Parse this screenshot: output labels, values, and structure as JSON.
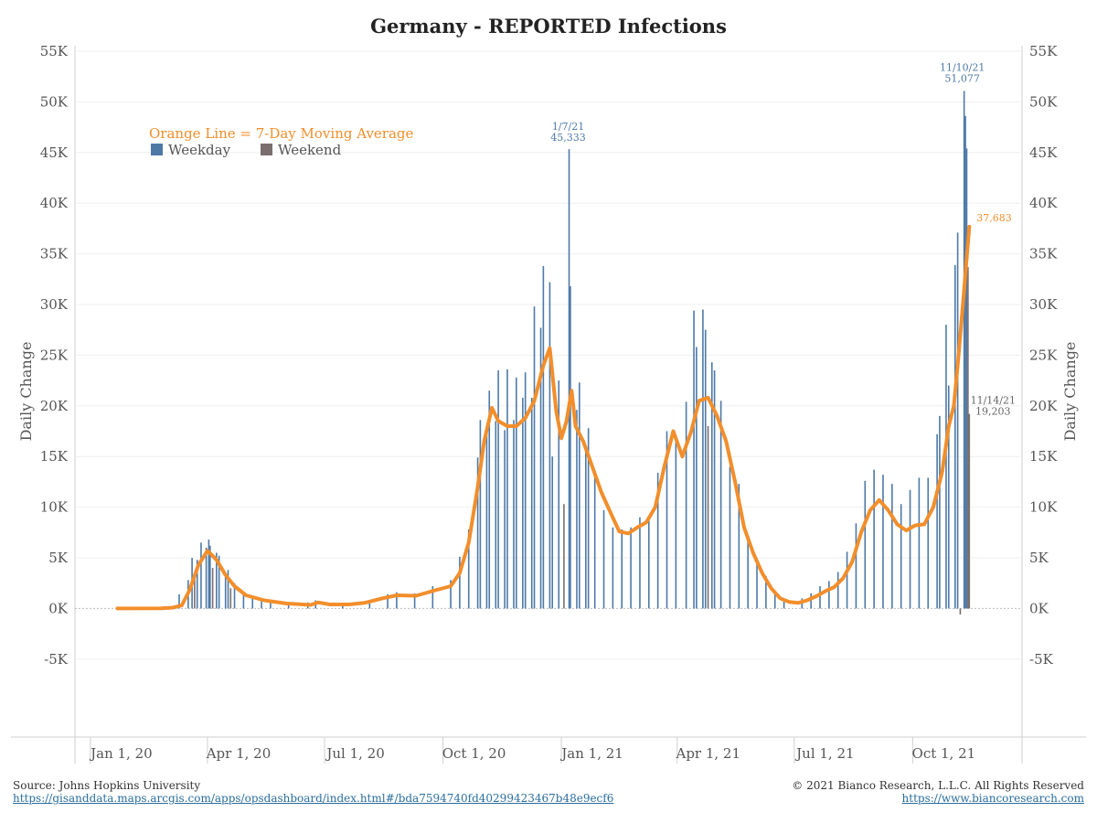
{
  "header": {
    "title": "Germany - REPORTED Infections"
  },
  "footer": {
    "source": "Source: Johns Hopkins University",
    "source_url": "https://gisanddata.maps.arcgis.com/apps/opsdashboard/index.html#/bda7594740fd40299423467b48e9ecf6",
    "copyright": "© 2021 Bianco Research, L.L.C. All Rights Reserved",
    "site_url": "https://www.biancoresearch.com"
  },
  "legend": {
    "line_note": "Orange Line = 7-Day Moving Average",
    "weekday": "Weekday",
    "weekend": "Weekend"
  },
  "colors": {
    "weekday": "#4e79a7",
    "weekend": "#7a6e6e",
    "moving_average": "#f28e2b",
    "label_blue": "#4e79a7",
    "label_gray": "#666666"
  },
  "chart_data": {
    "type": "bar",
    "title": "Germany - REPORTED Infections",
    "ylabel_left": "Daily Change",
    "ylabel_right": "Daily Change",
    "ylim": [
      -5000,
      55000
    ],
    "xlim": [
      "2019-12-20",
      "2021-12-25"
    ],
    "x_ticks": [
      {
        "date": "2020-01-01",
        "label": "Jan 1, 20"
      },
      {
        "date": "2020-04-01",
        "label": "Apr 1, 20"
      },
      {
        "date": "2020-07-01",
        "label": "Jul 1, 20"
      },
      {
        "date": "2020-10-01",
        "label": "Oct 1, 20"
      },
      {
        "date": "2021-01-01",
        "label": "Jan 1, 21"
      },
      {
        "date": "2021-04-01",
        "label": "Apr 1, 21"
      },
      {
        "date": "2021-07-01",
        "label": "Jul 1, 21"
      },
      {
        "date": "2021-10-01",
        "label": "Oct 1, 21"
      }
    ],
    "y_ticks": [
      {
        "value": -5000,
        "label": "-5K"
      },
      {
        "value": 0,
        "label": "0K"
      },
      {
        "value": 5000,
        "label": "5K"
      },
      {
        "value": 10000,
        "label": "10K"
      },
      {
        "value": 15000,
        "label": "15K"
      },
      {
        "value": 20000,
        "label": "20K"
      },
      {
        "value": 25000,
        "label": "25K"
      },
      {
        "value": 30000,
        "label": "30K"
      },
      {
        "value": 35000,
        "label": "35K"
      },
      {
        "value": 40000,
        "label": "40K"
      },
      {
        "value": 45000,
        "label": "45K"
      },
      {
        "value": 50000,
        "label": "50K"
      },
      {
        "value": 55000,
        "label": "55K"
      }
    ],
    "weekday_bars": [
      {
        "date": "2020-03-10",
        "value": 1400
      },
      {
        "date": "2020-03-17",
        "value": 2800
      },
      {
        "date": "2020-03-20",
        "value": 5000
      },
      {
        "date": "2020-03-24",
        "value": 4800
      },
      {
        "date": "2020-03-27",
        "value": 6500
      },
      {
        "date": "2020-03-31",
        "value": 6000
      },
      {
        "date": "2020-04-02",
        "value": 6800
      },
      {
        "date": "2020-04-03",
        "value": 6200
      },
      {
        "date": "2020-04-08",
        "value": 5500
      },
      {
        "date": "2020-04-10",
        "value": 5200
      },
      {
        "date": "2020-04-15",
        "value": 3500
      },
      {
        "date": "2020-04-17",
        "value": 3800
      },
      {
        "date": "2020-04-22",
        "value": 2500
      },
      {
        "date": "2020-04-29",
        "value": 1600
      },
      {
        "date": "2020-05-06",
        "value": 1200
      },
      {
        "date": "2020-05-13",
        "value": 900
      },
      {
        "date": "2020-05-20",
        "value": 700
      },
      {
        "date": "2020-06-03",
        "value": 450
      },
      {
        "date": "2020-06-18",
        "value": 600
      },
      {
        "date": "2020-06-24",
        "value": 800
      },
      {
        "date": "2020-07-15",
        "value": 400
      },
      {
        "date": "2020-08-05",
        "value": 800
      },
      {
        "date": "2020-08-19",
        "value": 1400
      },
      {
        "date": "2020-08-26",
        "value": 1600
      },
      {
        "date": "2020-09-09",
        "value": 1500
      },
      {
        "date": "2020-09-23",
        "value": 2200
      },
      {
        "date": "2020-10-07",
        "value": 2800
      },
      {
        "date": "2020-10-14",
        "value": 5100
      },
      {
        "date": "2020-10-21",
        "value": 7800
      },
      {
        "date": "2020-10-28",
        "value": 14900
      },
      {
        "date": "2020-10-30",
        "value": 18600
      },
      {
        "date": "2020-11-04",
        "value": 17200
      },
      {
        "date": "2020-11-06",
        "value": 21500
      },
      {
        "date": "2020-11-11",
        "value": 18500
      },
      {
        "date": "2020-11-13",
        "value": 23500
      },
      {
        "date": "2020-11-18",
        "value": 17600
      },
      {
        "date": "2020-11-20",
        "value": 23600
      },
      {
        "date": "2020-11-25",
        "value": 18600
      },
      {
        "date": "2020-11-27",
        "value": 22800
      },
      {
        "date": "2020-12-02",
        "value": 20800
      },
      {
        "date": "2020-12-04",
        "value": 23300
      },
      {
        "date": "2020-12-09",
        "value": 20800
      },
      {
        "date": "2020-12-11",
        "value": 29800
      },
      {
        "date": "2020-12-16",
        "value": 27700
      },
      {
        "date": "2020-12-18",
        "value": 33800
      },
      {
        "date": "2020-12-23",
        "value": 32200
      },
      {
        "date": "2020-12-25",
        "value": 15000
      },
      {
        "date": "2020-12-30",
        "value": 22500
      },
      {
        "date": "2021-01-07",
        "value": 45333
      },
      {
        "date": "2021-01-08",
        "value": 31800
      },
      {
        "date": "2021-01-13",
        "value": 19600
      },
      {
        "date": "2021-01-15",
        "value": 22300
      },
      {
        "date": "2021-01-20",
        "value": 15970
      },
      {
        "date": "2021-01-22",
        "value": 17800
      },
      {
        "date": "2021-01-27",
        "value": 13200
      },
      {
        "date": "2021-02-03",
        "value": 9700
      },
      {
        "date": "2021-02-10",
        "value": 8000
      },
      {
        "date": "2021-02-17",
        "value": 7800
      },
      {
        "date": "2021-02-24",
        "value": 8000
      },
      {
        "date": "2021-03-03",
        "value": 9000
      },
      {
        "date": "2021-03-10",
        "value": 9100
      },
      {
        "date": "2021-03-17",
        "value": 13400
      },
      {
        "date": "2021-03-24",
        "value": 17500
      },
      {
        "date": "2021-03-31",
        "value": 17000
      },
      {
        "date": "2021-04-08",
        "value": 20400
      },
      {
        "date": "2021-04-14",
        "value": 29400
      },
      {
        "date": "2021-04-16",
        "value": 25800
      },
      {
        "date": "2021-04-21",
        "value": 29500
      },
      {
        "date": "2021-04-23",
        "value": 27500
      },
      {
        "date": "2021-04-28",
        "value": 24300
      },
      {
        "date": "2021-04-30",
        "value": 23500
      },
      {
        "date": "2021-05-05",
        "value": 20500
      },
      {
        "date": "2021-05-12",
        "value": 14000
      },
      {
        "date": "2021-05-19",
        "value": 12300
      },
      {
        "date": "2021-05-26",
        "value": 6800
      },
      {
        "date": "2021-06-02",
        "value": 5000
      },
      {
        "date": "2021-06-09",
        "value": 3200
      },
      {
        "date": "2021-06-16",
        "value": 1500
      },
      {
        "date": "2021-06-23",
        "value": 900
      },
      {
        "date": "2021-07-07",
        "value": 1000
      },
      {
        "date": "2021-07-14",
        "value": 1500
      },
      {
        "date": "2021-07-21",
        "value": 2200
      },
      {
        "date": "2021-07-28",
        "value": 2700
      },
      {
        "date": "2021-08-04",
        "value": 3600
      },
      {
        "date": "2021-08-11",
        "value": 5600
      },
      {
        "date": "2021-08-18",
        "value": 8400
      },
      {
        "date": "2021-08-25",
        "value": 12600
      },
      {
        "date": "2021-09-01",
        "value": 13700
      },
      {
        "date": "2021-09-08",
        "value": 13200
      },
      {
        "date": "2021-09-15",
        "value": 12300
      },
      {
        "date": "2021-09-22",
        "value": 10300
      },
      {
        "date": "2021-09-29",
        "value": 11700
      },
      {
        "date": "2021-10-06",
        "value": 12900
      },
      {
        "date": "2021-10-13",
        "value": 12900
      },
      {
        "date": "2021-10-20",
        "value": 17200
      },
      {
        "date": "2021-10-22",
        "value": 19000
      },
      {
        "date": "2021-10-27",
        "value": 28000
      },
      {
        "date": "2021-10-29",
        "value": 22000
      },
      {
        "date": "2021-11-03",
        "value": 33900
      },
      {
        "date": "2021-11-05",
        "value": 37100
      },
      {
        "date": "2021-11-10",
        "value": 51077
      },
      {
        "date": "2021-11-11",
        "value": 48600
      },
      {
        "date": "2021-11-12",
        "value": 45400
      }
    ],
    "weekend_bars": [
      {
        "date": "2020-03-22",
        "value": 3000
      },
      {
        "date": "2020-04-05",
        "value": 4000
      },
      {
        "date": "2020-04-19",
        "value": 2000
      },
      {
        "date": "2021-01-03",
        "value": 10300
      },
      {
        "date": "2021-04-25",
        "value": 18000
      },
      {
        "date": "2021-11-07",
        "value": -600
      },
      {
        "date": "2021-11-13",
        "value": 33700
      },
      {
        "date": "2021-11-14",
        "value": 19203
      }
    ],
    "moving_average": [
      {
        "date": "2020-01-22",
        "value": 0
      },
      {
        "date": "2020-02-25",
        "value": 10
      },
      {
        "date": "2020-03-05",
        "value": 80
      },
      {
        "date": "2020-03-12",
        "value": 300
      },
      {
        "date": "2020-03-18",
        "value": 1800
      },
      {
        "date": "2020-03-25",
        "value": 4300
      },
      {
        "date": "2020-04-01",
        "value": 5700
      },
      {
        "date": "2020-04-08",
        "value": 4800
      },
      {
        "date": "2020-04-15",
        "value": 3300
      },
      {
        "date": "2020-04-22",
        "value": 2200
      },
      {
        "date": "2020-05-01",
        "value": 1300
      },
      {
        "date": "2020-05-15",
        "value": 800
      },
      {
        "date": "2020-06-01",
        "value": 500
      },
      {
        "date": "2020-06-20",
        "value": 350
      },
      {
        "date": "2020-06-26",
        "value": 600
      },
      {
        "date": "2020-07-05",
        "value": 400
      },
      {
        "date": "2020-07-20",
        "value": 400
      },
      {
        "date": "2020-08-01",
        "value": 550
      },
      {
        "date": "2020-08-15",
        "value": 1000
      },
      {
        "date": "2020-08-26",
        "value": 1300
      },
      {
        "date": "2020-09-10",
        "value": 1250
      },
      {
        "date": "2020-09-25",
        "value": 1800
      },
      {
        "date": "2020-10-07",
        "value": 2200
      },
      {
        "date": "2020-10-14",
        "value": 3500
      },
      {
        "date": "2020-10-21",
        "value": 6500
      },
      {
        "date": "2020-10-28",
        "value": 12000
      },
      {
        "date": "2020-11-02",
        "value": 16500
      },
      {
        "date": "2020-11-08",
        "value": 19800
      },
      {
        "date": "2020-11-13",
        "value": 18500
      },
      {
        "date": "2020-11-20",
        "value": 18000
      },
      {
        "date": "2020-11-27",
        "value": 18000
      },
      {
        "date": "2020-12-04",
        "value": 18800
      },
      {
        "date": "2020-12-11",
        "value": 20500
      },
      {
        "date": "2020-12-18",
        "value": 24000
      },
      {
        "date": "2020-12-23",
        "value": 25700
      },
      {
        "date": "2020-12-28",
        "value": 19500
      },
      {
        "date": "2021-01-01",
        "value": 16800
      },
      {
        "date": "2021-01-05",
        "value": 18500
      },
      {
        "date": "2021-01-09",
        "value": 21500
      },
      {
        "date": "2021-01-12",
        "value": 18000
      },
      {
        "date": "2021-01-18",
        "value": 16500
      },
      {
        "date": "2021-01-25",
        "value": 14000
      },
      {
        "date": "2021-02-01",
        "value": 11500
      },
      {
        "date": "2021-02-08",
        "value": 9500
      },
      {
        "date": "2021-02-15",
        "value": 7600
      },
      {
        "date": "2021-02-22",
        "value": 7400
      },
      {
        "date": "2021-03-01",
        "value": 8000
      },
      {
        "date": "2021-03-08",
        "value": 8500
      },
      {
        "date": "2021-03-15",
        "value": 10000
      },
      {
        "date": "2021-03-22",
        "value": 14000
      },
      {
        "date": "2021-03-29",
        "value": 17500
      },
      {
        "date": "2021-04-05",
        "value": 15000
      },
      {
        "date": "2021-04-12",
        "value": 17500
      },
      {
        "date": "2021-04-18",
        "value": 20500
      },
      {
        "date": "2021-04-25",
        "value": 20800
      },
      {
        "date": "2021-05-02",
        "value": 19000
      },
      {
        "date": "2021-05-09",
        "value": 16500
      },
      {
        "date": "2021-05-16",
        "value": 12500
      },
      {
        "date": "2021-05-23",
        "value": 8000
      },
      {
        "date": "2021-05-30",
        "value": 5500
      },
      {
        "date": "2021-06-06",
        "value": 3500
      },
      {
        "date": "2021-06-13",
        "value": 2000
      },
      {
        "date": "2021-06-20",
        "value": 1000
      },
      {
        "date": "2021-06-27",
        "value": 650
      },
      {
        "date": "2021-07-04",
        "value": 550
      },
      {
        "date": "2021-07-11",
        "value": 800
      },
      {
        "date": "2021-07-18",
        "value": 1200
      },
      {
        "date": "2021-07-25",
        "value": 1700
      },
      {
        "date": "2021-08-01",
        "value": 2100
      },
      {
        "date": "2021-08-08",
        "value": 3000
      },
      {
        "date": "2021-08-15",
        "value": 4600
      },
      {
        "date": "2021-08-22",
        "value": 7500
      },
      {
        "date": "2021-08-29",
        "value": 9700
      },
      {
        "date": "2021-09-05",
        "value": 10700
      },
      {
        "date": "2021-09-12",
        "value": 9700
      },
      {
        "date": "2021-09-19",
        "value": 8300
      },
      {
        "date": "2021-09-26",
        "value": 7700
      },
      {
        "date": "2021-10-03",
        "value": 8200
      },
      {
        "date": "2021-10-10",
        "value": 8300
      },
      {
        "date": "2021-10-17",
        "value": 10000
      },
      {
        "date": "2021-10-24",
        "value": 13500
      },
      {
        "date": "2021-10-29",
        "value": 18000
      },
      {
        "date": "2021-11-02",
        "value": 20000
      },
      {
        "date": "2021-11-05",
        "value": 24000
      },
      {
        "date": "2021-11-09",
        "value": 30000
      },
      {
        "date": "2021-11-14",
        "value": 37683
      }
    ],
    "annotations": [
      {
        "date": "2021-01-07",
        "value": 45333,
        "text": [
          "1/7/21",
          "45,333"
        ],
        "color": "label_blue"
      },
      {
        "date": "2021-11-10",
        "value": 51077,
        "text": [
          "11/10/21",
          "51,077"
        ],
        "color": "label_blue"
      },
      {
        "date": "2021-11-14",
        "value": 37683,
        "text": [
          "37,683"
        ],
        "color": "moving_average"
      },
      {
        "date": "2021-11-14",
        "value": 19203,
        "text": [
          "11/14/21",
          "19,203"
        ],
        "color": "label_gray"
      }
    ]
  }
}
